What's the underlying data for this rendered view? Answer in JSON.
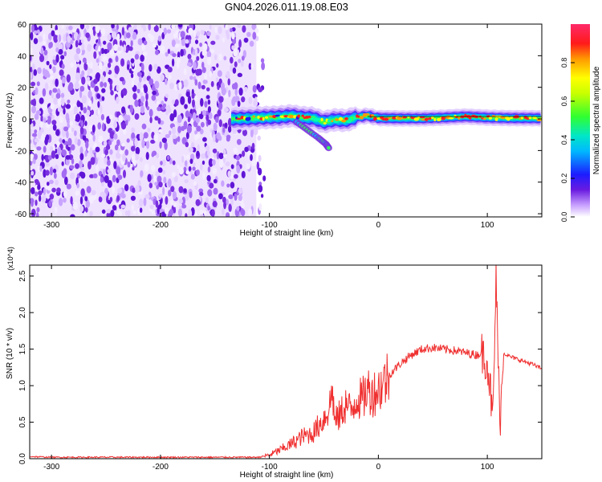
{
  "title": "GN04.2026.011.19.08.E03",
  "chart_data": [
    {
      "type": "heatmap",
      "xlabel": "Height of straight line (km)",
      "ylabel": "Frequency (Hz)",
      "xlim": [
        -320,
        150
      ],
      "ylim": [
        -62,
        60
      ],
      "xticks": [
        -300,
        -200,
        -100,
        0,
        100
      ],
      "yticks": [
        -60,
        -40,
        -20,
        0,
        20,
        40,
        60
      ],
      "colorbar": {
        "label": "Normalized spectral amplitude",
        "range": [
          0,
          1
        ],
        "ticks": [
          "0.0",
          "0.2",
          "0.4",
          "0.6",
          "0.8"
        ],
        "tick_values": [
          0,
          0.2,
          0.4,
          0.6,
          0.8
        ]
      },
      "noise_region": {
        "x_from": -320,
        "x_to": -112,
        "f_from": -62,
        "f_to": 60
      },
      "signal_ridge": [
        [
          -135,
          0
        ],
        [
          -120,
          0.3
        ],
        [
          -105,
          0.8
        ],
        [
          -90,
          1.2
        ],
        [
          -80,
          2
        ],
        [
          -70,
          0.8
        ],
        [
          -60,
          0.5
        ],
        [
          -50,
          -2
        ],
        [
          -40,
          -0.5
        ],
        [
          -30,
          -1
        ],
        [
          -20,
          1
        ],
        [
          -10,
          2
        ],
        [
          0,
          0.5
        ],
        [
          20,
          0.3
        ],
        [
          40,
          0.3
        ],
        [
          60,
          0.8
        ],
        [
          80,
          1.5
        ],
        [
          100,
          0.8
        ],
        [
          120,
          0.5
        ],
        [
          150,
          0.4
        ]
      ],
      "signal_branch": [
        [
          -75,
          -2
        ],
        [
          -65,
          -7
        ],
        [
          -55,
          -12
        ],
        [
          -48,
          -16
        ],
        [
          -45,
          -19
        ]
      ]
    },
    {
      "type": "line",
      "xlabel": "Height of straight line (km)",
      "ylabel": "SNR (10 * v/v)",
      "multiplier": "(x10^4)",
      "xlim": [
        -320,
        150
      ],
      "ylim": [
        0,
        2.65
      ],
      "xticks": [
        -300,
        -200,
        -100,
        0,
        100
      ],
      "yticks": [
        0.0,
        0.5,
        1.0,
        1.5,
        2.0,
        2.5
      ],
      "color": "#f03030",
      "series": [
        {
          "x": [
            -320,
            -300,
            -250,
            -200,
            -150,
            -110,
            -100,
            -90,
            -80,
            -70,
            -60,
            -55,
            -50,
            -45,
            -42,
            -40,
            -35,
            -30,
            -25,
            -20,
            -15,
            -10,
            -5,
            0,
            5,
            10,
            20,
            30,
            40,
            50,
            60,
            70,
            80,
            90,
            95,
            100,
            103,
            105,
            107,
            108,
            110,
            112,
            115,
            120,
            130,
            140,
            150
          ],
          "y": [
            0.03,
            0.02,
            0.02,
            0.02,
            0.02,
            0.02,
            0.05,
            0.12,
            0.2,
            0.3,
            0.35,
            0.45,
            0.55,
            0.7,
            0.95,
            0.5,
            0.6,
            0.75,
            0.65,
            0.85,
            0.8,
            0.95,
            0.9,
            0.95,
            1.05,
            1.15,
            1.3,
            1.42,
            1.5,
            1.52,
            1.5,
            1.48,
            1.45,
            1.42,
            1.45,
            1.35,
            0.9,
            0.5,
            1.7,
            2.6,
            1.2,
            0.6,
            1.45,
            1.4,
            1.35,
            1.3,
            1.23
          ]
        }
      ]
    }
  ]
}
